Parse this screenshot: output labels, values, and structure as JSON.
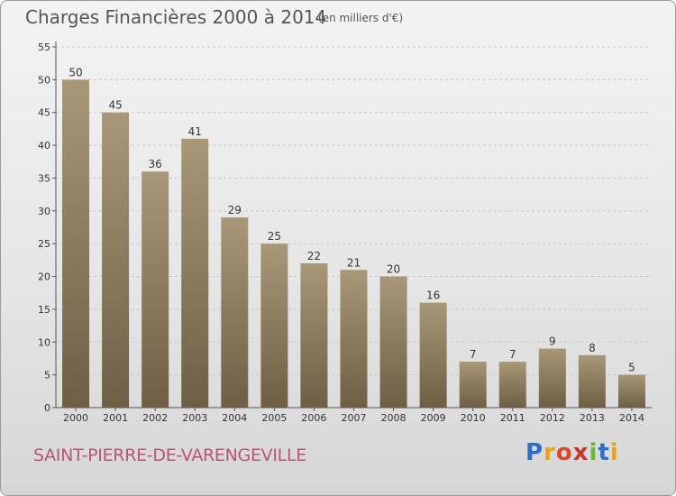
{
  "header": {
    "title": "Charges Financières 2000 à 2014",
    "subtitle": "(en milliers d'€)"
  },
  "footer": {
    "commune": "SAINT-PIERRE-DE-VARENGEVILLE",
    "brand": "Proxiti",
    "brand_letters": [
      {
        "ch": "P",
        "color": "#2c6fc4"
      },
      {
        "ch": "r",
        "color": "#e8a21c"
      },
      {
        "ch": "o",
        "color": "#d64a2a"
      },
      {
        "ch": "x",
        "color": "#c9342c"
      },
      {
        "ch": "i",
        "color": "#6cb33f"
      },
      {
        "ch": "t",
        "color": "#2c6fc4"
      },
      {
        "ch": "i",
        "color": "#e8a21c"
      }
    ]
  },
  "colors": {
    "bar_top": "#a89878",
    "bar_bottom": "#6e5e44",
    "grid": "#c8c8c8",
    "axis": "#555555",
    "text": "#333333"
  },
  "chart_data": {
    "type": "bar",
    "title": "Charges Financières 2000 à 2014",
    "subtitle": "(en milliers d'€)",
    "categories": [
      "2000",
      "2001",
      "2002",
      "2003",
      "2004",
      "2005",
      "2006",
      "2007",
      "2008",
      "2009",
      "2010",
      "2011",
      "2012",
      "2013",
      "2014"
    ],
    "values": [
      50,
      45,
      36,
      41,
      29,
      25,
      22,
      21,
      20,
      16,
      7,
      7,
      9,
      8,
      5
    ],
    "ylim": [
      0,
      55
    ],
    "yticks": [
      0,
      5,
      10,
      15,
      20,
      25,
      30,
      35,
      40,
      45,
      50,
      55
    ],
    "grid": true,
    "xlabel": "",
    "ylabel": ""
  }
}
